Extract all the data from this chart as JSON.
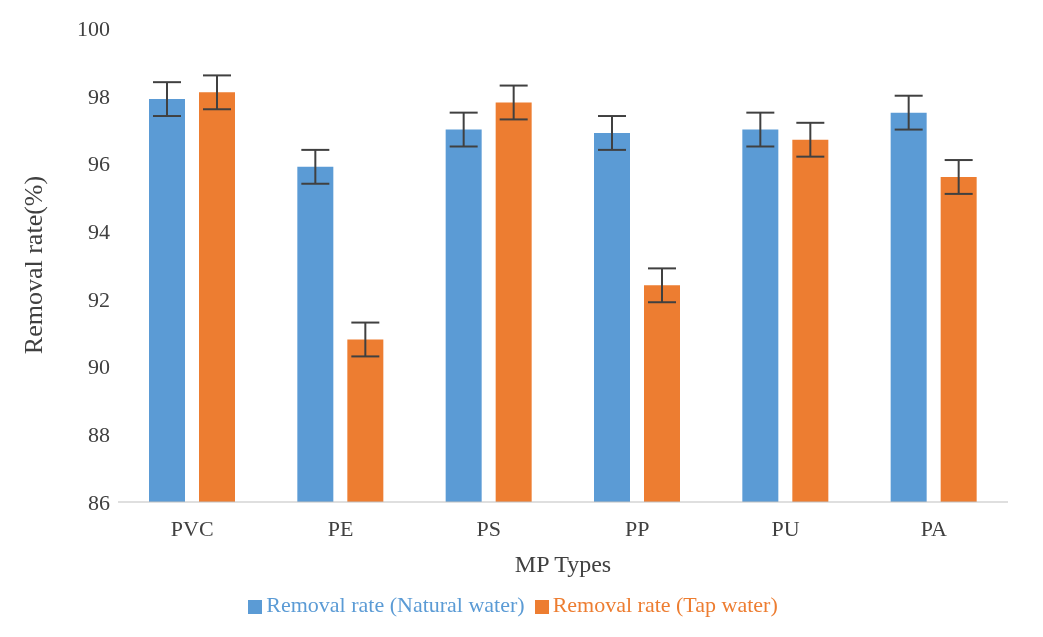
{
  "chart_data": {
    "type": "bar",
    "xlabel": "MP Types",
    "ylabel": "Removal rate(%)",
    "categories": [
      "PVC",
      "PE",
      "PS",
      "PP",
      "PU",
      "PA"
    ],
    "series": [
      {
        "name": "Removal rate (Natural water)",
        "color": "#5b9bd5",
        "values": [
          97.9,
          95.9,
          97.0,
          96.9,
          97.0,
          97.5
        ],
        "errors": [
          0.5,
          0.5,
          0.5,
          0.5,
          0.5,
          0.5
        ]
      },
      {
        "name": "Removal rate (Tap water)",
        "color": "#ed7d31",
        "values": [
          98.1,
          90.8,
          97.8,
          92.4,
          96.7,
          95.6
        ],
        "errors": [
          0.5,
          0.5,
          0.5,
          0.5,
          0.5,
          0.5
        ]
      }
    ],
    "ylim": [
      86,
      100
    ],
    "yticks": [
      86,
      88,
      90,
      92,
      94,
      96,
      98,
      100
    ],
    "grid": false,
    "legend": "bottom"
  }
}
